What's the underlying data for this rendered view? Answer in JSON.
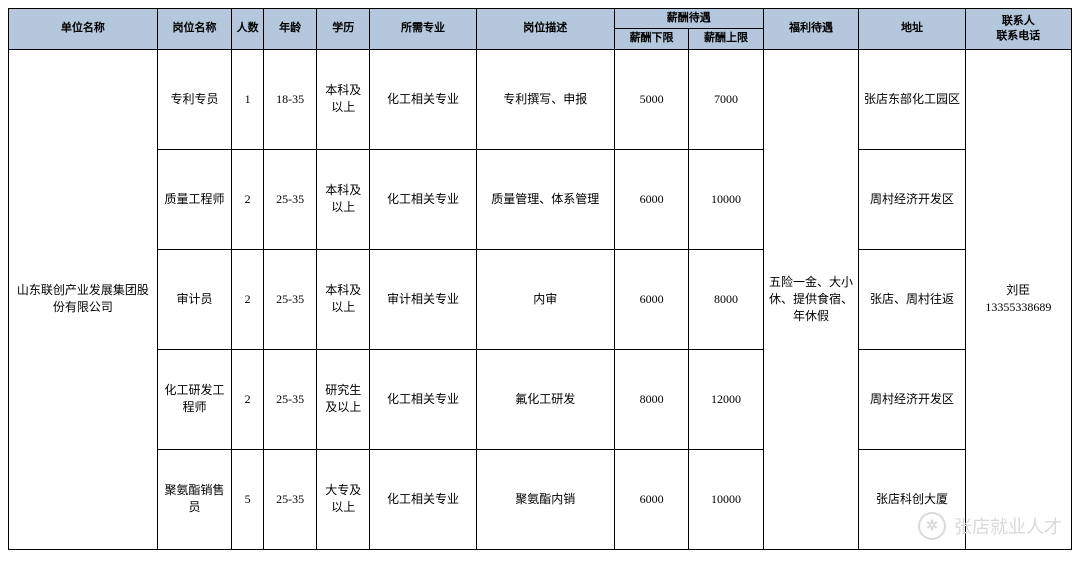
{
  "headers": {
    "company": "单位名称",
    "post": "岗位名称",
    "count": "人数",
    "age": "年龄",
    "edu": "学历",
    "major": "所需专业",
    "desc": "岗位描述",
    "salary_group": "薪酬待遇",
    "salary_min": "薪酬下限",
    "salary_max": "薪酬上限",
    "welfare": "福利待遇",
    "address": "地址",
    "contact_group": "联系人\n联系电话"
  },
  "company": "山东联创产业发展集团股份有限公司",
  "welfare": "五险一金、大小休、提供食宿、年休假",
  "contact_name": "刘臣",
  "contact_phone": "13355338689",
  "rows": [
    {
      "post": "专利专员",
      "count": "1",
      "age": "18-35",
      "edu": "本科及以上",
      "major": "化工相关专业",
      "desc": "专利撰写、申报",
      "smin": "5000",
      "smax": "7000",
      "addr": "张店东部化工园区"
    },
    {
      "post": "质量工程师",
      "count": "2",
      "age": "25-35",
      "edu": "本科及以上",
      "major": "化工相关专业",
      "desc": "质量管理、体系管理",
      "smin": "6000",
      "smax": "10000",
      "addr": "周村经济开发区"
    },
    {
      "post": "审计员",
      "count": "2",
      "age": "25-35",
      "edu": "本科及以上",
      "major": "审计相关专业",
      "desc": "内审",
      "smin": "6000",
      "smax": "8000",
      "addr": "张店、周村往返"
    },
    {
      "post": "化工研发工程师",
      "count": "2",
      "age": "25-35",
      "edu": "研究生及以上",
      "major": "化工相关专业",
      "desc": "氟化工研发",
      "smin": "8000",
      "smax": "12000",
      "addr": "周村经济开发区"
    },
    {
      "post": "聚氨酯销售员",
      "count": "5",
      "age": "25-35",
      "edu": "大专及以上",
      "major": "化工相关专业",
      "desc": "聚氨酯内销",
      "smin": "6000",
      "smax": "10000",
      "addr": "张店科创大厦"
    }
  ],
  "watermark": "张店就业人才",
  "colors": {
    "header_bg": "#b4c7dc",
    "border": "#000000",
    "wm": "#d9d9d9"
  }
}
